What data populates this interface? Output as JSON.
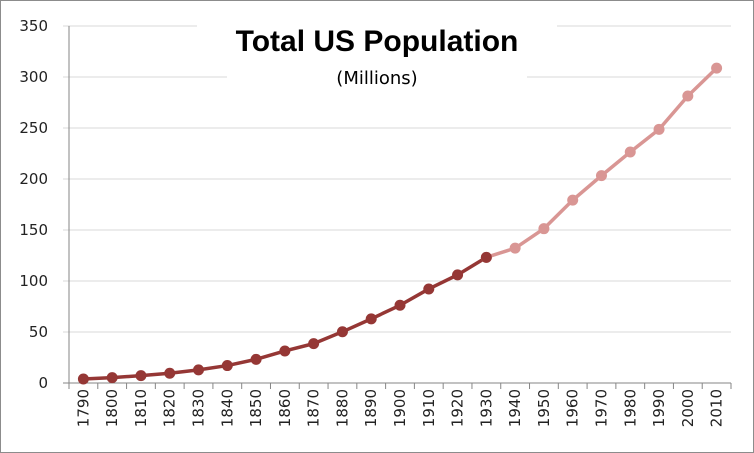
{
  "chart_data": {
    "type": "line",
    "title": "Total US Population",
    "subtitle": "(Millions)",
    "xlabel": "",
    "ylabel": "",
    "categories": [
      "1790",
      "1800",
      "1810",
      "1820",
      "1830",
      "1840",
      "1850",
      "1860",
      "1870",
      "1880",
      "1890",
      "1900",
      "1910",
      "1920",
      "1930",
      "1940",
      "1950",
      "1960",
      "1970",
      "1980",
      "1990",
      "2000",
      "2010"
    ],
    "series": [
      {
        "color": "#953735",
        "values": [
          3.9,
          5.3,
          7.2,
          9.6,
          12.9,
          17.1,
          23.2,
          31.4,
          38.6,
          50.2,
          62.9,
          76.2,
          92.2,
          106.0,
          123.2,
          null,
          null,
          null,
          null,
          null,
          null,
          null,
          null
        ]
      },
      {
        "color": "#D99694",
        "values": [
          null,
          null,
          null,
          null,
          null,
          null,
          null,
          null,
          null,
          null,
          null,
          null,
          null,
          null,
          123.2,
          132.2,
          151.3,
          179.3,
          203.3,
          226.5,
          248.7,
          281.4,
          308.7
        ]
      }
    ],
    "ylim": [
      0,
      350
    ],
    "yticks": [
      0,
      50,
      100,
      150,
      200,
      250,
      300,
      350
    ],
    "grid": true,
    "legend": "none"
  }
}
